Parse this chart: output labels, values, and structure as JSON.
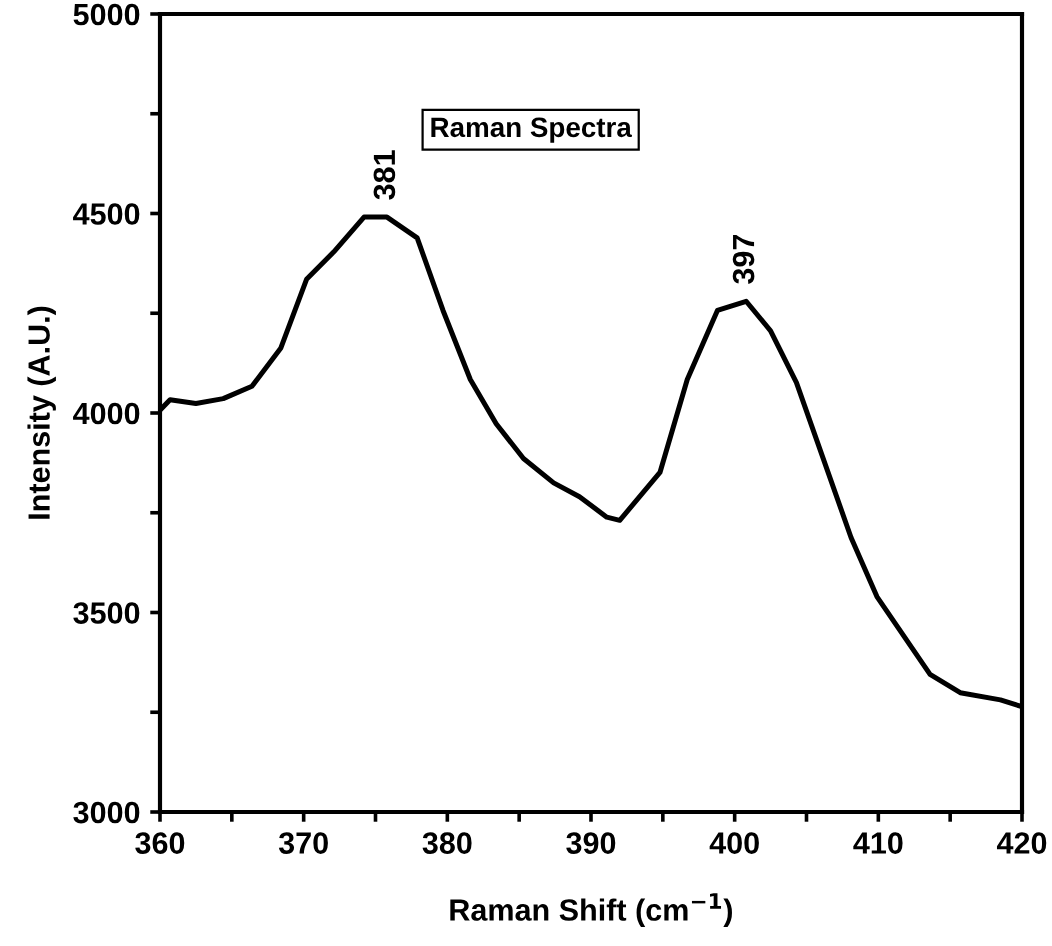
{
  "chart_data": {
    "type": "line",
    "xlabel": "Raman Shift (cm$^{−1}$)",
    "ylabel": "Intensity (A.U.)",
    "x": [
      360,
      360.7,
      362.5,
      364.4,
      366.4,
      368.4,
      370.2,
      372.1,
      374.2,
      375.8,
      377.9,
      379.7,
      381.6,
      383.4,
      385.3,
      387.4,
      389.2,
      391.1,
      392.0,
      394.8,
      396.7,
      398.8,
      400.8,
      402.5,
      404.3,
      408.1,
      409.9,
      413.6,
      415.7,
      418.5,
      420
    ],
    "series": [
      {
        "color": "#000000",
        "values": [
          4007,
          4033,
          4024,
          4036,
          4067,
          4162,
          4335,
          4404,
          4491,
          4491,
          4439,
          4257,
          4084,
          3973,
          3886,
          3825,
          3790,
          3739,
          3731,
          3851,
          4084,
          4257,
          4280,
          4206,
          4076,
          3688,
          3540,
          3345,
          3299,
          3281,
          3264
        ]
      }
    ],
    "xlim": [
      360,
      420
    ],
    "ylim": [
      3000,
      5000
    ],
    "xticks": [
      360,
      {
        "value": 365,
        "label": null
      },
      370,
      {
        "value": 375,
        "label": null
      },
      380,
      {
        "value": 385,
        "label": null
      },
      390,
      {
        "value": 395,
        "label": null
      },
      400,
      {
        "value": 405,
        "label": null
      },
      410,
      {
        "value": 415,
        "label": null
      },
      420
    ],
    "yticks": [
      3000,
      {
        "value": 3250,
        "label": null
      },
      3500,
      {
        "value": 3750,
        "label": null
      },
      4000,
      {
        "value": 4250,
        "label": null
      },
      4500,
      {
        "value": 4750,
        "label": null
      },
      5000
    ],
    "annotations": [
      "Raman Spectra",
      {
        "text": "381",
        "x": 375.8,
        "y": 4491
      },
      {
        "text": "397",
        "x": 400.8,
        "y": 4280
      }
    ],
    "grid": false,
    "legend": false,
    "marker": "none",
    "line_style": "solid"
  }
}
